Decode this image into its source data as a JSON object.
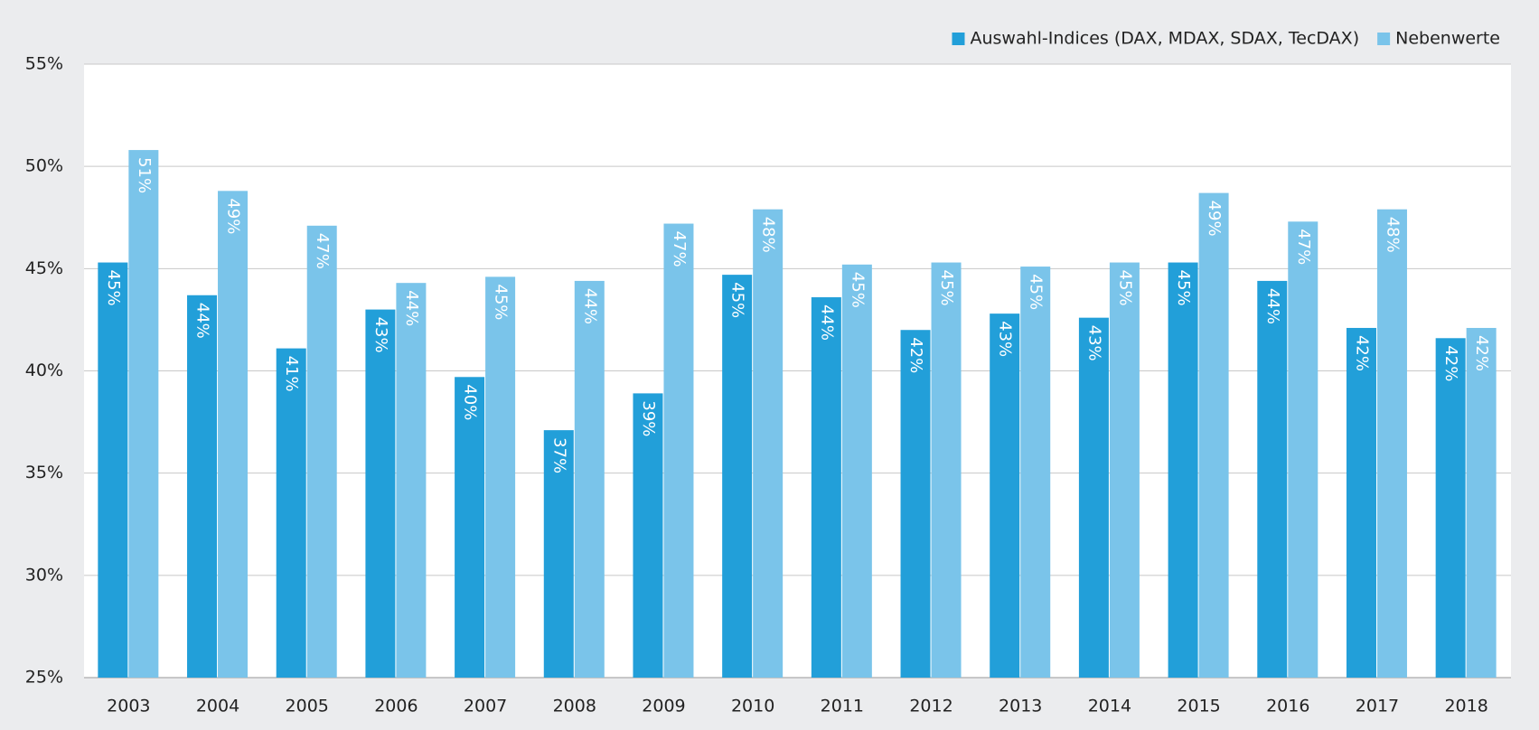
{
  "chart_data": {
    "type": "bar",
    "categories": [
      "2003",
      "2004",
      "2005",
      "2006",
      "2007",
      "2008",
      "2009",
      "2010",
      "2011",
      "2012",
      "2013",
      "2014",
      "2015",
      "2016",
      "2017",
      "2018"
    ],
    "series": [
      {
        "name": "Auswahl-Indices (DAX, MDAX, SDAX, TecDAX)",
        "color": "#229fd9",
        "values": [
          45.3,
          43.7,
          41.1,
          43.0,
          39.7,
          37.1,
          38.9,
          44.7,
          43.6,
          42.0,
          42.8,
          42.6,
          45.3,
          44.4,
          42.1,
          41.6
        ],
        "value_labels": [
          "45%",
          "44%",
          "41%",
          "43%",
          "40%",
          "37%",
          "39%",
          "45%",
          "44%",
          "42%",
          "43%",
          "43%",
          "45%",
          "44%",
          "42%",
          "42%"
        ]
      },
      {
        "name": "Nebenwerte",
        "color": "#7ac4ea",
        "values": [
          50.8,
          48.8,
          47.1,
          44.3,
          44.6,
          44.4,
          47.2,
          47.9,
          45.2,
          45.3,
          45.1,
          45.3,
          48.7,
          47.3,
          47.9,
          42.1
        ],
        "value_labels": [
          "51%",
          "49%",
          "47%",
          "44%",
          "45%",
          "44%",
          "47%",
          "48%",
          "45%",
          "45%",
          "45%",
          "45%",
          "49%",
          "47%",
          "48%",
          "42%"
        ]
      }
    ],
    "ylim": [
      25,
      55
    ],
    "yticks": [
      {
        "value": 25,
        "label": "25%"
      },
      {
        "value": 30,
        "label": "30%"
      },
      {
        "value": 35,
        "label": "35%"
      },
      {
        "value": 40,
        "label": "40%"
      },
      {
        "value": 45,
        "label": "45%"
      },
      {
        "value": 50,
        "label": "50%"
      },
      {
        "value": 55,
        "label": "55%"
      }
    ],
    "grid": true,
    "legend": "top-right"
  }
}
